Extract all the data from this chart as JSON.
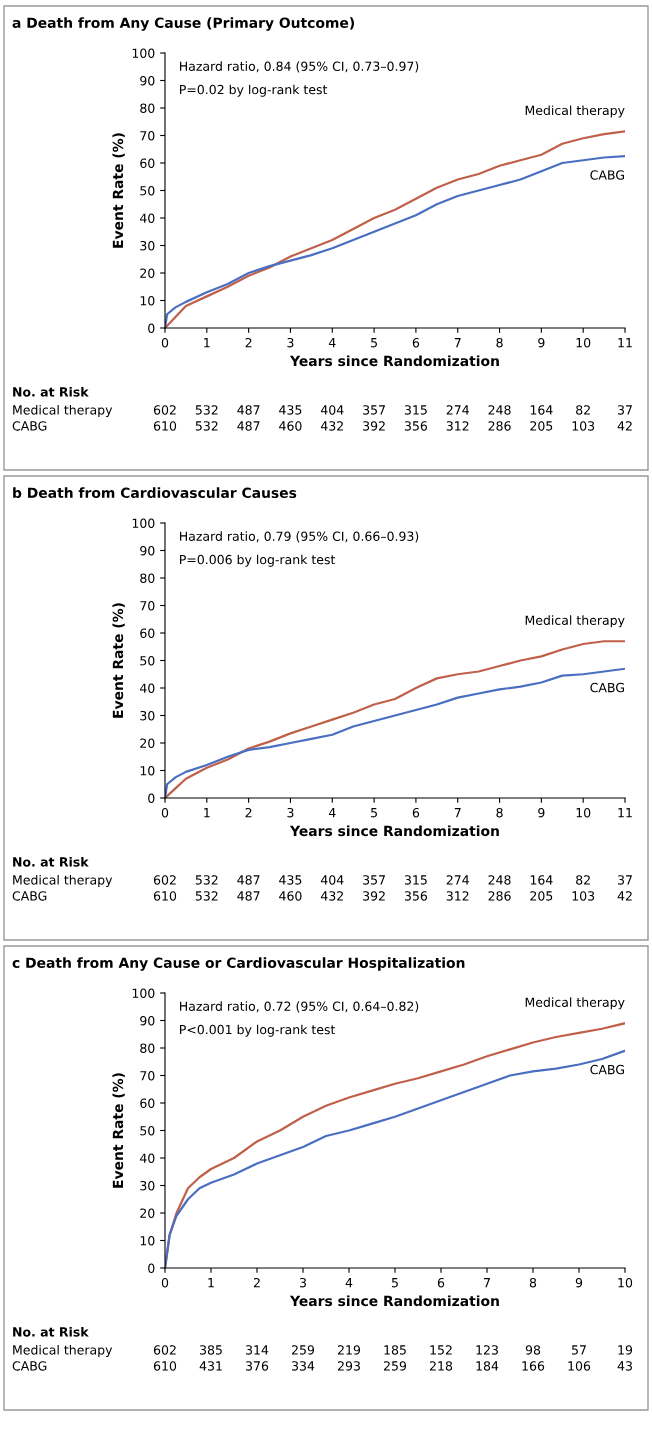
{
  "chart_data": [
    {
      "type": "line",
      "title": "a Death from Any Cause (Primary Outcome)",
      "xlabel": "Years since Randomization",
      "ylabel": "Event Rate (%)",
      "xlim": [
        0,
        11
      ],
      "xticks": [
        0,
        1,
        2,
        3,
        4,
        5,
        6,
        7,
        8,
        9,
        10,
        11
      ],
      "ylim": [
        0,
        100
      ],
      "yticks": [
        0,
        10,
        20,
        30,
        40,
        50,
        60,
        70,
        80,
        90,
        100
      ],
      "grid": false,
      "legend": false,
      "series": [
        {
          "name": "Medical therapy",
          "color": "#c0604a",
          "x": [
            0,
            0.25,
            0.5,
            1,
            1.5,
            2,
            2.5,
            3,
            3.5,
            4,
            4.5,
            5,
            5.5,
            6,
            6.5,
            7,
            7.5,
            8,
            8.5,
            9,
            9.5,
            10,
            10.5,
            11
          ],
          "values": [
            0,
            4,
            8,
            11.5,
            15,
            19,
            22,
            26,
            29,
            32,
            36,
            40,
            43,
            47,
            51,
            54,
            56,
            59,
            61,
            63,
            67,
            69,
            70.5,
            71.5
          ]
        },
        {
          "name": "CABG",
          "color": "#4a6fc0",
          "x": [
            0,
            0.05,
            0.25,
            0.5,
            1,
            1.5,
            2,
            2.5,
            3,
            3.5,
            4,
            4.5,
            5,
            5.5,
            6,
            6.5,
            7,
            7.5,
            8,
            8.5,
            9,
            9.5,
            10,
            10.5,
            11
          ],
          "values": [
            0,
            5,
            7.5,
            9.5,
            13,
            16,
            20,
            22.5,
            24.5,
            26.5,
            29,
            32,
            35,
            38,
            41,
            45,
            48,
            50,
            52,
            54,
            57,
            60,
            61,
            62,
            62.5
          ]
        }
      ],
      "annotations": [
        "Hazard ratio, 0.84 (95% CI, 0.73–0.97)",
        "P=0.02 by log-rank test",
        "No. at Risk",
        "Medical therapy",
        "CABG",
        "602",
        "532",
        "487",
        "435",
        "404",
        "357",
        "315",
        "274",
        "248",
        "164",
        "82",
        "37",
        "610",
        "532",
        "487",
        "460",
        "432",
        "392",
        "356",
        "312",
        "286",
        "205",
        "103",
        "42"
      ]
    },
    {
      "type": "line",
      "title": "b Death from Cardiovascular Causes",
      "xlabel": "Years since Randomization",
      "ylabel": "Event Rate (%)",
      "xlim": [
        0,
        11
      ],
      "xticks": [
        0,
        1,
        2,
        3,
        4,
        5,
        6,
        7,
        8,
        9,
        10,
        11
      ],
      "ylim": [
        0,
        100
      ],
      "yticks": [
        0,
        10,
        20,
        30,
        40,
        50,
        60,
        70,
        80,
        90,
        100
      ],
      "grid": false,
      "legend": false,
      "series": [
        {
          "name": "Medical therapy",
          "color": "#c0604a",
          "x": [
            0,
            0.25,
            0.5,
            1,
            1.5,
            2,
            2.5,
            3,
            3.5,
            4,
            4.5,
            5,
            5.5,
            6,
            6.5,
            7,
            7.5,
            8,
            8.5,
            9,
            9.5,
            10,
            10.5,
            11
          ],
          "values": [
            0,
            3.5,
            7,
            11,
            14,
            18,
            20.5,
            23.5,
            26,
            28.5,
            31,
            34,
            36,
            40,
            43.5,
            45,
            46,
            48,
            50,
            51.5,
            54,
            56,
            57,
            57
          ]
        },
        {
          "name": "CABG",
          "color": "#4a6fc0",
          "x": [
            0,
            0.05,
            0.25,
            0.5,
            1,
            1.5,
            2,
            2.5,
            3,
            3.5,
            4,
            4.5,
            5,
            5.5,
            6,
            6.5,
            7,
            7.5,
            8,
            8.5,
            9,
            9.5,
            10,
            10.5,
            11
          ],
          "values": [
            0,
            5,
            7.5,
            9.5,
            12,
            15,
            17.5,
            18.5,
            20,
            21.5,
            23,
            26,
            28,
            30,
            32,
            34,
            36.5,
            38,
            39.5,
            40.5,
            42,
            44.5,
            45,
            46,
            47
          ]
        }
      ],
      "annotations": [
        "Hazard ratio, 0.79 (95% CI, 0.66–0.93)",
        "P=0.006 by log-rank test",
        "No. at Risk",
        "Medical therapy",
        "CABG",
        "602",
        "532",
        "487",
        "435",
        "404",
        "357",
        "315",
        "274",
        "248",
        "164",
        "82",
        "37",
        "610",
        "532",
        "487",
        "460",
        "432",
        "392",
        "356",
        "312",
        "286",
        "205",
        "103",
        "42"
      ]
    },
    {
      "type": "line",
      "title": "c Death from Any Cause or Cardiovascular Hospitalization",
      "xlabel": "Years since Randomization",
      "ylabel": "Event Rate (%)",
      "xlim": [
        0,
        10
      ],
      "xticks": [
        0,
        1,
        2,
        3,
        4,
        5,
        6,
        7,
        8,
        9,
        10
      ],
      "ylim": [
        0,
        100
      ],
      "yticks": [
        0,
        10,
        20,
        30,
        40,
        50,
        60,
        70,
        80,
        90,
        100
      ],
      "grid": false,
      "legend": false,
      "series": [
        {
          "name": "Medical therapy",
          "color": "#c0604a",
          "x": [
            0,
            0.1,
            0.25,
            0.5,
            0.75,
            1,
            1.5,
            2,
            2.5,
            3,
            3.5,
            4,
            4.5,
            5,
            5.5,
            6,
            6.5,
            7,
            7.5,
            8,
            8.5,
            9,
            9.5,
            10
          ],
          "values": [
            0,
            12,
            20,
            29,
            33,
            36,
            40,
            46,
            50,
            55,
            59,
            62,
            64.5,
            67,
            69,
            71.5,
            74,
            77,
            79.5,
            82,
            84,
            85.5,
            87,
            89
          ]
        },
        {
          "name": "CABG",
          "color": "#4a6fc0",
          "x": [
            0,
            0.1,
            0.25,
            0.5,
            0.75,
            1,
            1.5,
            2,
            2.5,
            3,
            3.5,
            4,
            4.5,
            5,
            5.5,
            6,
            6.5,
            7,
            7.5,
            8,
            8.5,
            9,
            9.5,
            10
          ],
          "values": [
            0,
            12,
            19,
            25,
            29,
            31,
            34,
            38,
            41,
            44,
            48,
            50,
            52.5,
            55,
            58,
            61,
            64,
            67,
            70,
            71.5,
            72.5,
            74,
            76,
            79
          ]
        }
      ],
      "annotations": [
        "Hazard ratio, 0.72 (95% CI, 0.64–0.82)",
        "P<0.001 by log-rank test",
        "No. at Risk",
        "Medical therapy",
        "CABG",
        "602",
        "385",
        "314",
        "259",
        "219",
        "185",
        "152",
        "123",
        "98",
        "57",
        "19",
        "610",
        "431",
        "376",
        "334",
        "293",
        "259",
        "218",
        "184",
        "166",
        "106",
        "43"
      ]
    }
  ]
}
